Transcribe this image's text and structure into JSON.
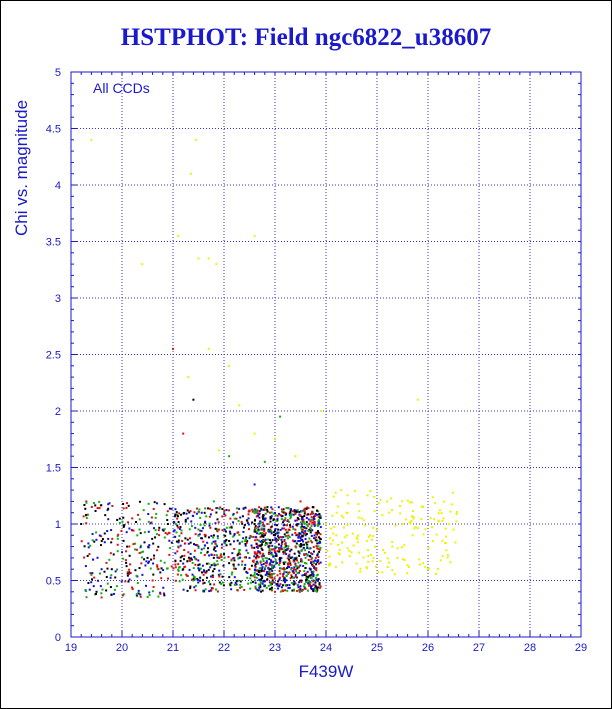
{
  "chart_data": {
    "type": "scatter",
    "title": "HSTPHOT: Field ngc6822_u38607",
    "xlabel": "F439W",
    "ylabel": "Chi vs. magnitude",
    "annotation": "All CCDs",
    "xlim": [
      19,
      29
    ],
    "ylim": [
      0,
      5
    ],
    "x_ticks": [
      "19",
      "20",
      "21",
      "22",
      "23",
      "24",
      "25",
      "26",
      "27",
      "28",
      "29"
    ],
    "y_ticks": [
      "0",
      "0.5",
      "1",
      "1.5",
      "2",
      "2.5",
      "3",
      "3.5",
      "4",
      "4.5",
      "5"
    ],
    "grid": true,
    "colors": {
      "axis": "#1a1acc",
      "grid": "#3333cc",
      "ccd_black": "#000000",
      "ccd_red": "#e01010",
      "ccd_green": "#10b010",
      "ccd_blue": "#1010e0",
      "ccd_yellow": "#f0f000"
    },
    "series": [
      {
        "color": "#000000",
        "points": [
          [
            19.2,
            1.0
          ],
          [
            19.5,
            0.4
          ],
          [
            19.8,
            0.6
          ],
          [
            20.1,
            0.8
          ],
          [
            20.5,
            0.7
          ],
          [
            20.9,
            1.0
          ],
          [
            21.2,
            0.6
          ],
          [
            21.5,
            0.9
          ],
          [
            21.8,
            0.7
          ],
          [
            22.1,
            0.85
          ],
          [
            22.4,
            0.6
          ],
          [
            22.7,
            0.75
          ],
          [
            22.9,
            0.55
          ],
          [
            23.1,
            0.7
          ],
          [
            23.3,
            0.65
          ],
          [
            23.5,
            0.8
          ],
          [
            23.7,
            0.6
          ],
          [
            21.4,
            2.1
          ],
          [
            22.6,
            1.0
          ],
          [
            23.0,
            0.9
          ]
        ]
      },
      {
        "color": "#e01010",
        "points": [
          [
            19.3,
            1.2
          ],
          [
            19.6,
            0.35
          ],
          [
            20.2,
            1.05
          ],
          [
            20.6,
            0.5
          ],
          [
            21.0,
            2.55
          ],
          [
            21.3,
            0.75
          ],
          [
            21.6,
            0.55
          ],
          [
            21.9,
            0.95
          ],
          [
            22.2,
            0.7
          ],
          [
            22.5,
            0.6
          ],
          [
            22.8,
            0.85
          ],
          [
            23.0,
            0.4
          ],
          [
            23.2,
            0.75
          ],
          [
            23.4,
            0.95
          ],
          [
            23.6,
            0.55
          ],
          [
            23.8,
            0.7
          ],
          [
            21.2,
            1.8
          ],
          [
            22.9,
            1.1
          ],
          [
            23.5,
            1.2
          ]
        ]
      },
      {
        "color": "#10b010",
        "points": [
          [
            19.4,
            0.55
          ],
          [
            19.9,
            0.45
          ],
          [
            20.3,
            0.9
          ],
          [
            20.7,
            0.6
          ],
          [
            21.1,
            0.8
          ],
          [
            21.4,
            0.5
          ],
          [
            21.7,
            0.65
          ],
          [
            22.0,
            0.9
          ],
          [
            22.3,
            0.75
          ],
          [
            22.6,
            0.55
          ],
          [
            22.8,
            1.55
          ],
          [
            23.0,
            0.8
          ],
          [
            23.2,
            0.6
          ],
          [
            23.4,
            0.85
          ],
          [
            23.6,
            0.7
          ],
          [
            23.8,
            0.5
          ],
          [
            22.1,
            1.6
          ],
          [
            23.1,
            1.95
          ],
          [
            21.8,
            1.2
          ],
          [
            23.3,
            1.05
          ]
        ]
      },
      {
        "color": "#1010e0",
        "points": [
          [
            19.6,
            0.6
          ],
          [
            20.0,
            0.75
          ],
          [
            20.4,
            0.55
          ],
          [
            20.8,
            0.95
          ],
          [
            21.2,
            0.65
          ],
          [
            21.5,
            0.8
          ],
          [
            21.9,
            0.55
          ],
          [
            22.2,
            0.9
          ],
          [
            22.5,
            0.7
          ],
          [
            22.8,
            0.6
          ],
          [
            23.0,
            0.75
          ],
          [
            23.2,
            0.5
          ],
          [
            23.4,
            0.65
          ],
          [
            23.6,
            0.9
          ],
          [
            23.8,
            0.6
          ],
          [
            22.6,
            1.35
          ],
          [
            23.5,
            0.45
          ]
        ]
      },
      {
        "color": "#f0f000",
        "points": [
          [
            19.4,
            4.4
          ],
          [
            20.4,
            3.3
          ],
          [
            21.1,
            3.55
          ],
          [
            21.35,
            4.1
          ],
          [
            21.45,
            4.4
          ],
          [
            21.5,
            3.35
          ],
          [
            21.7,
            3.35
          ],
          [
            21.85,
            3.3
          ],
          [
            21.3,
            2.3
          ],
          [
            21.7,
            2.55
          ],
          [
            22.1,
            2.4
          ],
          [
            22.3,
            2.05
          ],
          [
            21.9,
            1.65
          ],
          [
            22.6,
            1.8
          ],
          [
            23.0,
            1.75
          ],
          [
            23.4,
            1.6
          ],
          [
            23.9,
            2.0
          ],
          [
            24.0,
            1.0
          ],
          [
            24.2,
            0.9
          ],
          [
            24.4,
            1.1
          ],
          [
            24.5,
            0.75
          ],
          [
            24.7,
            1.05
          ],
          [
            24.8,
            0.85
          ],
          [
            25.0,
            0.95
          ],
          [
            25.2,
            1.2
          ],
          [
            25.3,
            0.8
          ],
          [
            25.5,
            1.0
          ],
          [
            25.7,
            0.9
          ],
          [
            25.9,
            1.15
          ],
          [
            26.1,
            0.85
          ],
          [
            26.3,
            1.05
          ],
          [
            26.5,
            0.95
          ],
          [
            24.6,
            0.65
          ],
          [
            25.4,
            0.7
          ],
          [
            25.8,
            2.1
          ],
          [
            22.6,
            3.55
          ],
          [
            26.0,
            0.6
          ],
          [
            24.3,
            1.3
          ]
        ]
      }
    ]
  }
}
